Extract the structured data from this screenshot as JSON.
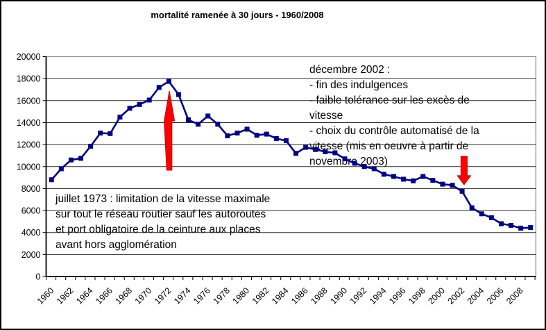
{
  "figure": {
    "title": "mortalité ramenée à 30 jours - 1960/2008"
  },
  "chart_data": {
    "type": "line",
    "title": "mortalité ramenée à 30 jours - 1960/2008",
    "xlabel": "",
    "ylabel": "",
    "ylim": [
      0,
      20000
    ],
    "y_tick_step": 2000,
    "grid": true,
    "legend": "none",
    "marker": "square",
    "x": [
      1960,
      1961,
      1962,
      1963,
      1964,
      1965,
      1966,
      1967,
      1968,
      1969,
      1970,
      1971,
      1972,
      1973,
      1974,
      1975,
      1976,
      1977,
      1978,
      1979,
      1980,
      1981,
      1982,
      1983,
      1984,
      1985,
      1986,
      1987,
      1988,
      1989,
      1990,
      1991,
      1992,
      1993,
      1994,
      1995,
      1996,
      1997,
      1998,
      1999,
      2000,
      2001,
      2002,
      2003,
      2004,
      2005,
      2006,
      2007,
      2008,
      2009
    ],
    "values": [
      8800,
      9800,
      10600,
      10750,
      11850,
      13050,
      13000,
      14500,
      15300,
      15650,
      16050,
      17200,
      17750,
      16550,
      14250,
      13850,
      14600,
      13850,
      12800,
      13050,
      13400,
      12850,
      12950,
      12550,
      12350,
      11200,
      11750,
      11550,
      11350,
      11250,
      10700,
      10300,
      10000,
      9800,
      9300,
      9100,
      8850,
      8700,
      9100,
      8750,
      8400,
      8300,
      7750,
      6250,
      5700,
      5350,
      4800,
      4650,
      4400,
      4450
    ],
    "x_tick_labels": [
      "1960",
      "1962",
      "1964",
      "1966",
      "1968",
      "1970",
      "1972",
      "1974",
      "1976",
      "1978",
      "1980",
      "1982",
      "1984",
      "1986",
      "1988",
      "1990",
      "1992",
      "1994",
      "1996",
      "1998",
      "2000",
      "2002",
      "2004",
      "2006",
      "2008"
    ],
    "y_tick_labels": [
      "0",
      "2000",
      "4000",
      "6000",
      "8000",
      "10000",
      "12000",
      "14000",
      "16000",
      "18000",
      "20000"
    ],
    "arrows": [
      {
        "name": "up-arrow-1972",
        "direction": "up",
        "year": 1972.05,
        "value_tip": 16870,
        "value_tail": 9670
      },
      {
        "name": "down-arrow-2002",
        "direction": "down",
        "year": 2002.2,
        "value_tip": 8350,
        "value_tail": 10930
      }
    ],
    "colors": {
      "line": "#000080",
      "marker": "#000080",
      "arrow_fill": "#ff0000",
      "arrow_edge": "#c00000",
      "grid": "#2a2a2a",
      "top_grid": "#909090",
      "axis": "#000000",
      "text": "#000000",
      "background": "#ffffff"
    }
  },
  "annotations": {
    "july1973": {
      "lines": [
        "juillet 1973 : limitation de la vitesse maximale",
        "sur tout le réseau routier sauf les autoroutes",
        "et port obligatoire de la ceinture aux places",
        "avant hors agglomération"
      ]
    },
    "dec2002": {
      "lines": [
        "décembre 2002 :",
        "- fin des indulgences",
        "- faible tolérance sur les excès de",
        "vitesse",
        "- choix du contrôle automatisé de la",
        "vitesse (mis en oeuvre à partir de",
        "novembre 2003)"
      ]
    }
  }
}
